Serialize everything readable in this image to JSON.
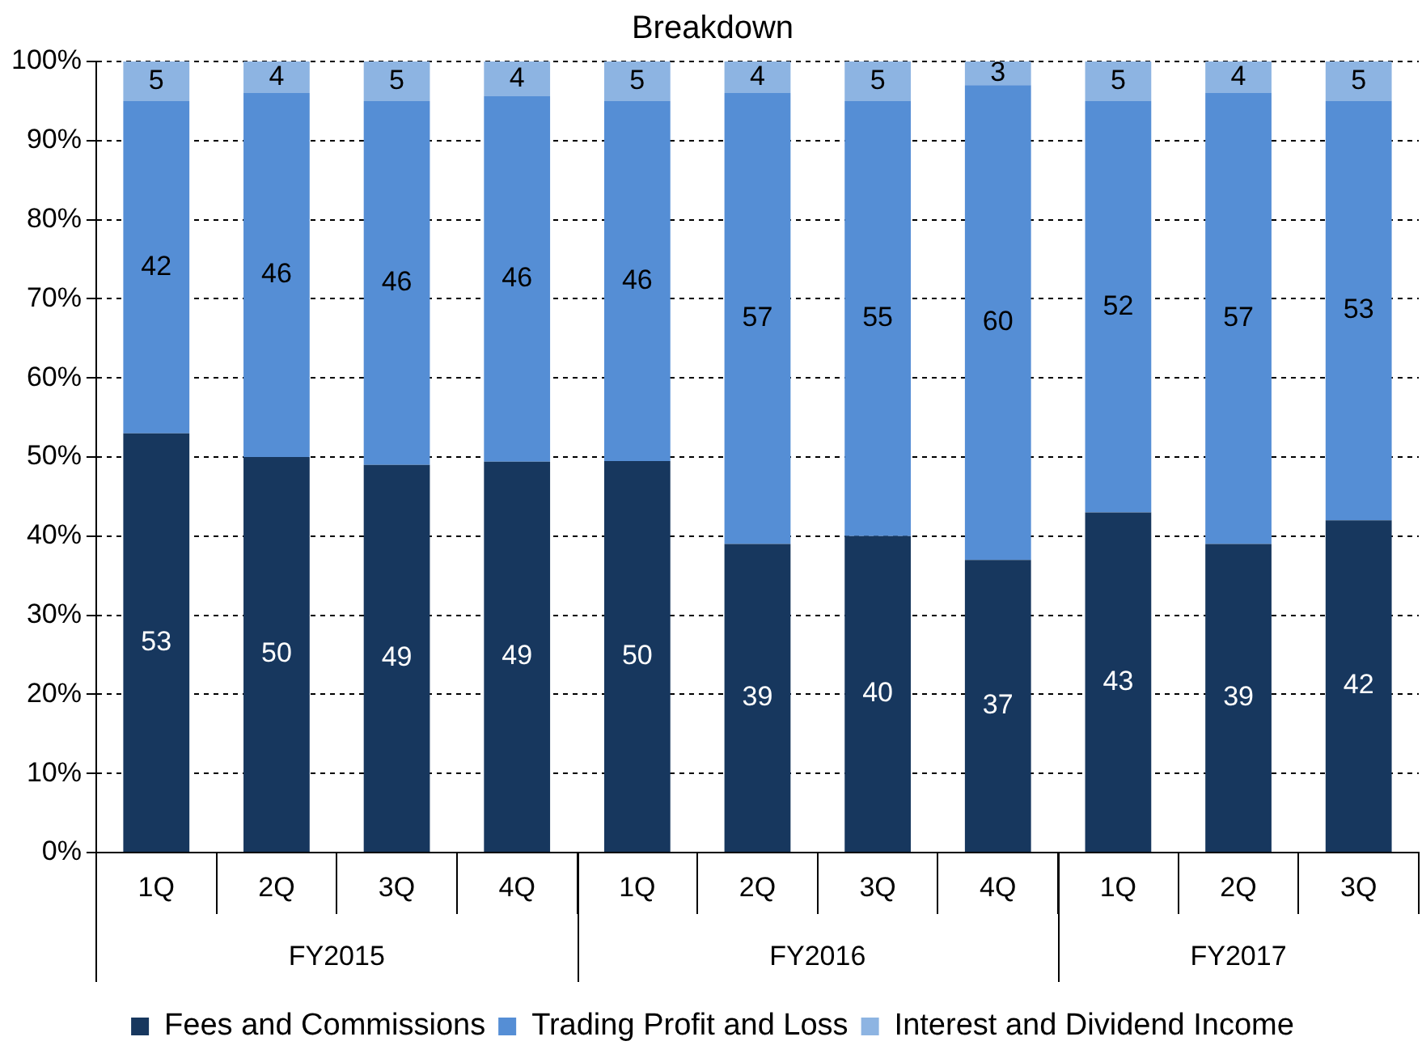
{
  "chart_data": {
    "type": "bar",
    "title": "Breakdown",
    "stacked": true,
    "grid": "y",
    "legend": "bottom",
    "categories": [
      "1Q",
      "2Q",
      "3Q",
      "4Q",
      "1Q",
      "2Q",
      "3Q",
      "4Q",
      "1Q",
      "2Q",
      "3Q"
    ],
    "annotations": [
      "FY2015",
      "FY2016",
      "FY2017"
    ],
    "series": [
      {
        "name": "Fees and Commissions",
        "color": "#17375e",
        "values": [
          53,
          50,
          49,
          49.4,
          49.5,
          39,
          40,
          37,
          43,
          39,
          42
        ],
        "value_labels": [
          "53",
          "50",
          "49",
          "49",
          "50",
          "39",
          "40",
          "37",
          "43",
          "39",
          "42"
        ]
      },
      {
        "name": "Trading Profit and Loss",
        "color": "#558ed5",
        "values": [
          42,
          46,
          46,
          46.2,
          45.5,
          57,
          55,
          60,
          52,
          57,
          53
        ],
        "value_labels": [
          "42",
          "46",
          "46",
          "46",
          "46",
          "57",
          "55",
          "60",
          "52",
          "57",
          "53"
        ]
      },
      {
        "name": "Interest and Dividend Income",
        "color": "#8db4e2",
        "values": [
          5,
          4,
          5,
          4.4,
          5,
          4,
          5,
          3,
          5,
          4,
          5
        ],
        "value_labels": [
          "5",
          "4",
          "5",
          "4",
          "5",
          "4",
          "5",
          "3",
          "5",
          "4",
          "5"
        ]
      }
    ],
    "ylim": [
      0,
      100
    ],
    "yticks": [
      {
        "value": 0,
        "label": "0%"
      },
      {
        "value": 10,
        "label": "10%"
      },
      {
        "value": 20,
        "label": "20%"
      },
      {
        "value": 30,
        "label": "30%"
      },
      {
        "value": 40,
        "label": "40%"
      },
      {
        "value": 50,
        "label": "50%"
      },
      {
        "value": 60,
        "label": "60%"
      },
      {
        "value": 70,
        "label": "70%"
      },
      {
        "value": 80,
        "label": "80%"
      },
      {
        "value": 90,
        "label": "90%"
      },
      {
        "value": 100,
        "label": "100%"
      }
    ]
  }
}
